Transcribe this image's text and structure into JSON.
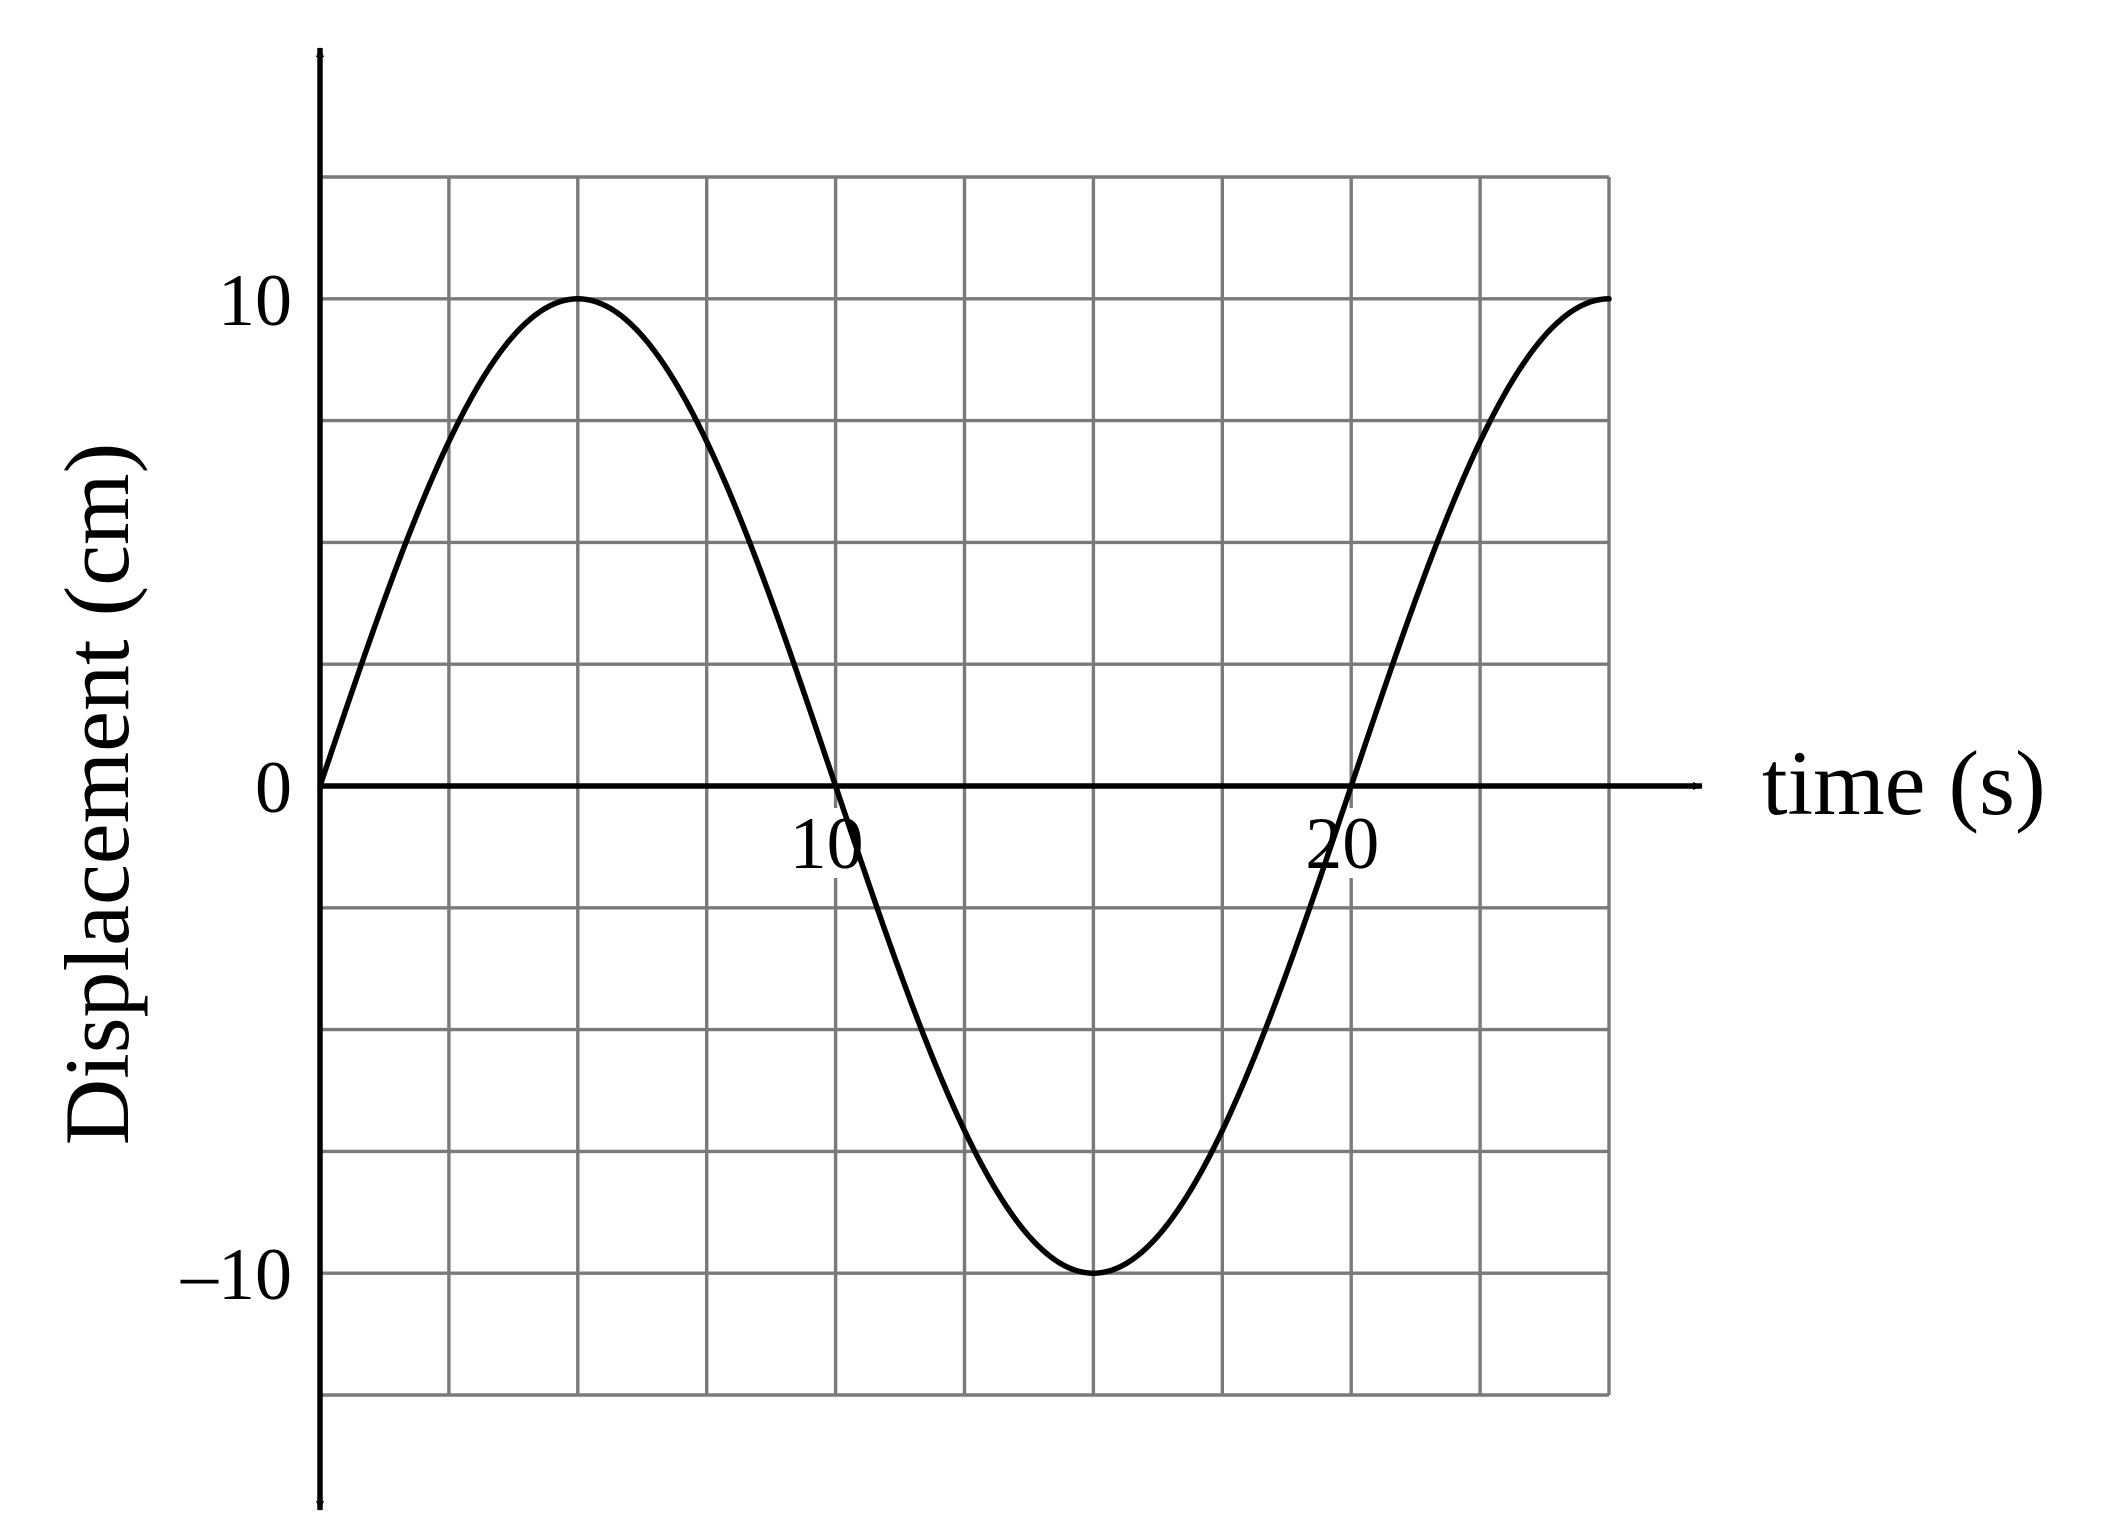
{
  "chart_data": {
    "type": "line",
    "title": "",
    "xlabel": "time (s)",
    "ylabel": "Displacement (cm)",
    "xlim": [
      0,
      25
    ],
    "ylim": [
      -12.5,
      12.5
    ],
    "x_ticks": [
      10,
      20
    ],
    "x_tick_labels": [
      "10",
      "20"
    ],
    "y_ticks": [
      10,
      0,
      -10
    ],
    "y_tick_labels": [
      "10",
      "0",
      "–10"
    ],
    "grid": true,
    "grid_x_step": 2.5,
    "grid_y_step": 2.5,
    "legend": "none",
    "series": [
      {
        "function": "10*sin(2*pi*t/20)",
        "x": [
          0,
          1.25,
          2.5,
          3.75,
          5,
          6.25,
          7.5,
          8.75,
          10,
          11.25,
          12.5,
          13.75,
          15,
          16.25,
          17.5,
          18.75,
          20,
          21.25,
          22.5,
          23.75,
          25
        ],
        "values": [
          0,
          3.83,
          7.07,
          9.24,
          10,
          9.24,
          7.07,
          3.83,
          0,
          -3.83,
          -7.07,
          -9.24,
          -10,
          -9.24,
          -7.07,
          -3.83,
          0,
          3.83,
          7.07,
          9.24,
          10
        ],
        "color": "#000000"
      }
    ]
  }
}
